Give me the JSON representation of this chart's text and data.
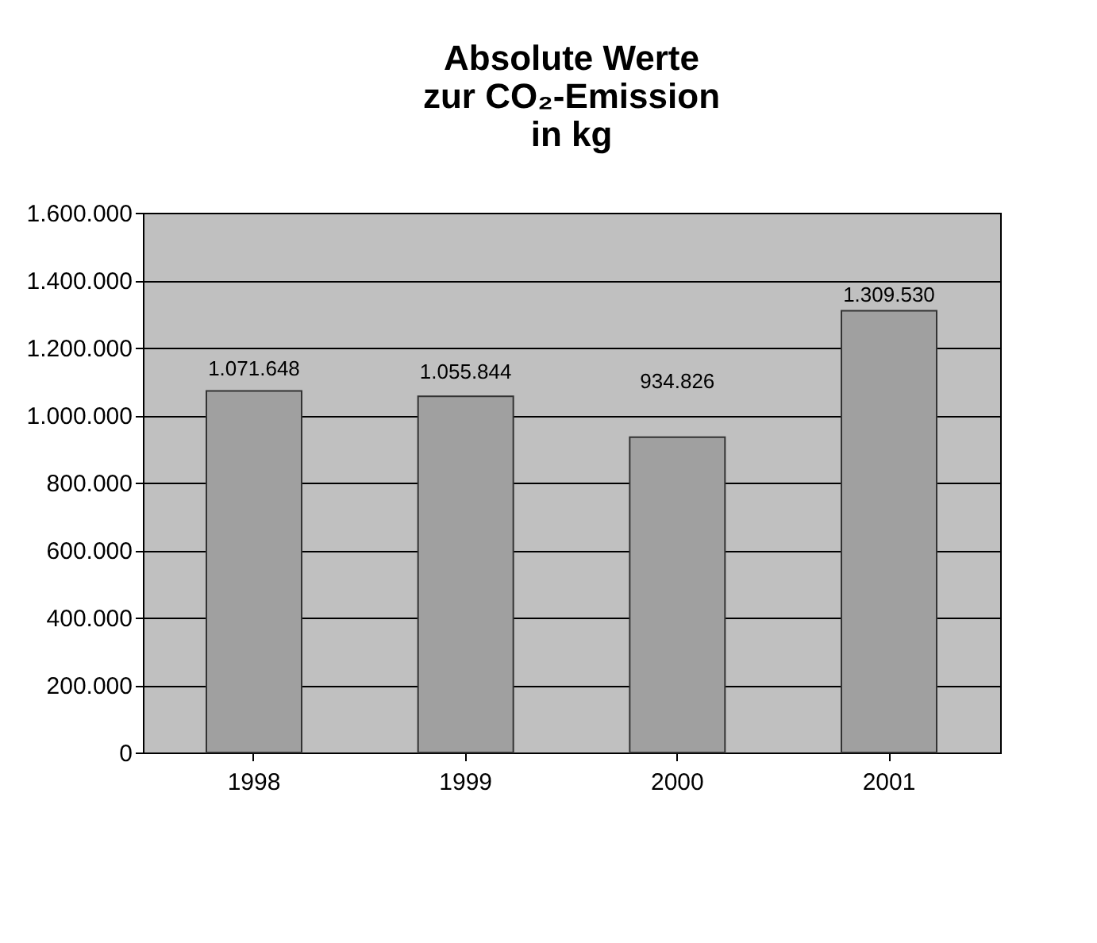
{
  "chart_data": {
    "type": "bar",
    "title": "Absolute Werte\nzur CO₂-Emission\nin kg",
    "categories": [
      "1998",
      "1999",
      "2000",
      "2001"
    ],
    "values": [
      1071648,
      1055844,
      934826,
      1309530
    ],
    "value_labels": [
      "1.071.648",
      "1.055.844",
      "934.826",
      "1.309.530"
    ],
    "color": "#a0a0a0",
    "ylim": [
      0,
      1600000
    ],
    "yticks": [
      {
        "value": 0,
        "label": "0"
      },
      {
        "value": 200000,
        "label": "200.000"
      },
      {
        "value": 400000,
        "label": "400.000"
      },
      {
        "value": 600000,
        "label": "600.000"
      },
      {
        "value": 800000,
        "label": "800.000"
      },
      {
        "value": 1000000,
        "label": "1.000.000"
      },
      {
        "value": 1200000,
        "label": "1.200.000"
      },
      {
        "value": 1400000,
        "label": "1.400.000"
      },
      {
        "value": 1600000,
        "label": "1.600.000"
      }
    ],
    "grid": "y"
  }
}
